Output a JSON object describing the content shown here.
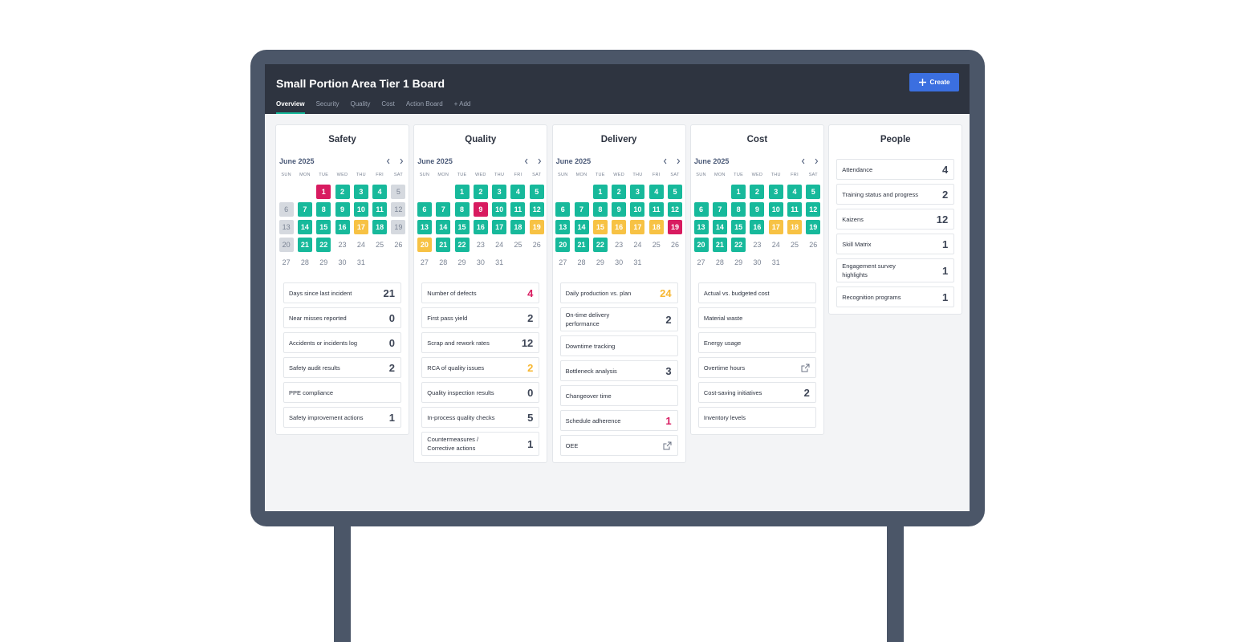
{
  "header": {
    "title": "Small Portion Area Tier 1 Board",
    "create_button": "Create",
    "tabs": [
      "Overview",
      "Security",
      "Quality",
      "Cost",
      "Action Board",
      "+ Add"
    ],
    "active_tab": 0
  },
  "weekdays": [
    "SUN",
    "MON",
    "TUE",
    "WED",
    "THU",
    "FRI",
    "SAT"
  ],
  "status_colors": {
    "green": "#17b99b",
    "red": "#d81b60",
    "yellow": "#f7c244",
    "gray": "#d5d9df"
  },
  "panels": [
    {
      "title": "Safety",
      "month": "June 2025",
      "days": [
        null,
        null,
        1,
        2,
        3,
        4,
        5,
        6,
        7,
        8,
        9,
        10,
        11,
        12,
        13,
        14,
        15,
        16,
        17,
        18,
        19,
        20,
        21,
        22,
        23,
        24,
        25,
        26,
        27,
        28,
        29,
        30,
        31
      ],
      "statuses": [
        null,
        null,
        "red",
        "green",
        "green",
        "green",
        "gray",
        "gray",
        "green",
        "green",
        "green",
        "green",
        "green",
        "gray",
        "gray",
        "green",
        "green",
        "green",
        "yellow",
        "green",
        "gray",
        "gray",
        "green",
        "green",
        null,
        null,
        null,
        null,
        null,
        null,
        null,
        null,
        null
      ],
      "metrics": [
        {
          "label": "Days since last incident",
          "value": 21
        },
        {
          "label": "Near misses reported",
          "value": 0
        },
        {
          "label": "Accidents or incidents log",
          "value": 0
        },
        {
          "label": "Safety audit results",
          "value": 2
        },
        {
          "label": "PPE compliance"
        },
        {
          "label": "Safety improvement actions",
          "value": 1
        }
      ]
    },
    {
      "title": "Quality",
      "month": "June 2025",
      "days": [
        null,
        null,
        1,
        2,
        3,
        4,
        5,
        6,
        7,
        8,
        9,
        10,
        11,
        12,
        13,
        14,
        15,
        16,
        17,
        18,
        19,
        20,
        21,
        22,
        23,
        24,
        25,
        26,
        27,
        28,
        29,
        30,
        31
      ],
      "statuses": [
        null,
        null,
        "green",
        "green",
        "green",
        "green",
        "green",
        "green",
        "green",
        "green",
        "red",
        "green",
        "green",
        "green",
        "green",
        "green",
        "green",
        "green",
        "green",
        "green",
        "yellow",
        "yellow",
        "green",
        "green",
        null,
        null,
        null,
        null,
        null,
        null,
        null,
        null,
        null
      ],
      "metrics": [
        {
          "label": "Number of defects",
          "value": 4,
          "color": "#d81b60"
        },
        {
          "label": "First pass yield",
          "value": 2
        },
        {
          "label": "Scrap and rework rates",
          "value": 12
        },
        {
          "label": "RCA of quality issues",
          "value": 2,
          "color": "#f7b731"
        },
        {
          "label": "Quality inspection results",
          "value": 0
        },
        {
          "label": "In-process quality checks",
          "value": 5
        },
        {
          "label": "Countermeasures / Corrective actions",
          "value": 1
        }
      ]
    },
    {
      "title": "Delivery",
      "month": "June 2025",
      "days": [
        null,
        null,
        1,
        2,
        3,
        4,
        5,
        6,
        7,
        8,
        9,
        10,
        11,
        12,
        13,
        14,
        15,
        16,
        17,
        18,
        19,
        20,
        21,
        22,
        23,
        24,
        25,
        26,
        27,
        28,
        29,
        30,
        31
      ],
      "statuses": [
        null,
        null,
        "green",
        "green",
        "green",
        "green",
        "green",
        "green",
        "green",
        "green",
        "green",
        "green",
        "green",
        "green",
        "green",
        "green",
        "yellow",
        "yellow",
        "yellow",
        "yellow",
        "red",
        "green",
        "green",
        "green",
        null,
        null,
        null,
        null,
        null,
        null,
        null,
        null,
        null
      ],
      "metrics": [
        {
          "label": "Daily production vs. plan",
          "value": 24,
          "color": "#f7b731"
        },
        {
          "label": "On-time delivery performance",
          "value": 2
        },
        {
          "label": "Downtime tracking"
        },
        {
          "label": "Bottleneck analysis",
          "value": 3
        },
        {
          "label": "Changeover time"
        },
        {
          "label": "Schedule adherence",
          "value": 1,
          "color": "#d81b60"
        },
        {
          "label": "OEE",
          "link": true
        }
      ]
    },
    {
      "title": "Cost",
      "month": "June 2025",
      "days": [
        null,
        null,
        1,
        2,
        3,
        4,
        5,
        6,
        7,
        8,
        9,
        10,
        11,
        12,
        13,
        14,
        15,
        16,
        17,
        18,
        19,
        20,
        21,
        22,
        23,
        24,
        25,
        26,
        27,
        28,
        29,
        30,
        31
      ],
      "statuses": [
        null,
        null,
        "green",
        "green",
        "green",
        "green",
        "green",
        "green",
        "green",
        "green",
        "green",
        "green",
        "green",
        "green",
        "green",
        "green",
        "green",
        "green",
        "yellow",
        "yellow",
        "green",
        "green",
        "green",
        "green",
        null,
        null,
        null,
        null,
        null,
        null,
        null,
        null,
        null
      ],
      "metrics": [
        {
          "label": "Actual vs. budgeted cost"
        },
        {
          "label": "Material waste"
        },
        {
          "label": "Energy usage"
        },
        {
          "label": "Overtime hours",
          "link": true
        },
        {
          "label": "Cost-saving initiatives",
          "value": 2
        },
        {
          "label": "Inventory levels"
        }
      ]
    },
    {
      "title": "People",
      "metrics": [
        {
          "label": "Attendance",
          "value": 4
        },
        {
          "label": "Training status and progress",
          "value": 2
        },
        {
          "label": "Kaizens",
          "value": 12
        },
        {
          "label": "Skill Matrix",
          "value": 1
        },
        {
          "label": "Engagement survey highlights",
          "value": 1
        },
        {
          "label": "Recognition programs",
          "value": 1
        }
      ]
    }
  ]
}
